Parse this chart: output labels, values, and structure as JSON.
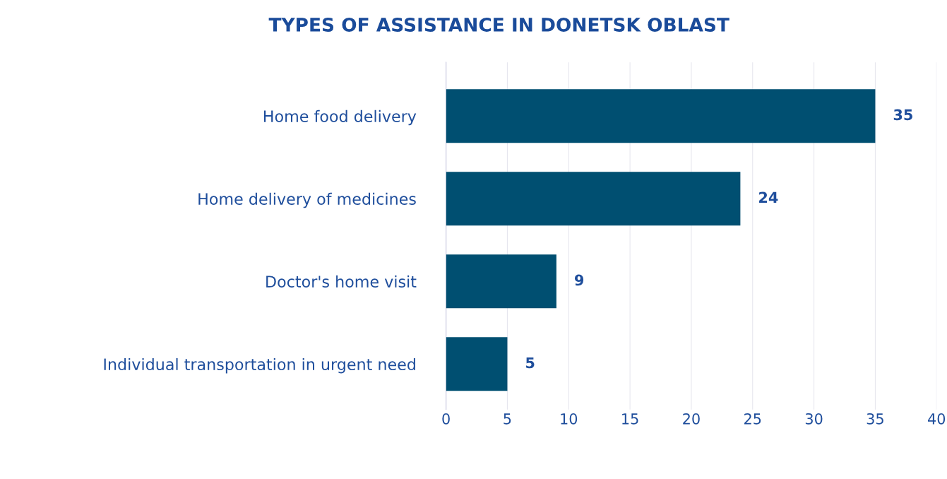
{
  "chart_data": {
    "type": "bar",
    "orientation": "horizontal",
    "title": "TYPES OF ASSISTANCE IN DONETSK OBLAST",
    "categories": [
      "Home food delivery",
      "Home delivery of medicines",
      "Doctor's home visit",
      "Individual transportation in urgent need"
    ],
    "values": [
      35,
      24,
      9,
      5
    ],
    "color": "#004f71",
    "xlim": [
      0,
      40
    ],
    "xticks": [
      0,
      5,
      10,
      15,
      20,
      25,
      30,
      35,
      40
    ],
    "grid": "x",
    "data_labels": true
  }
}
